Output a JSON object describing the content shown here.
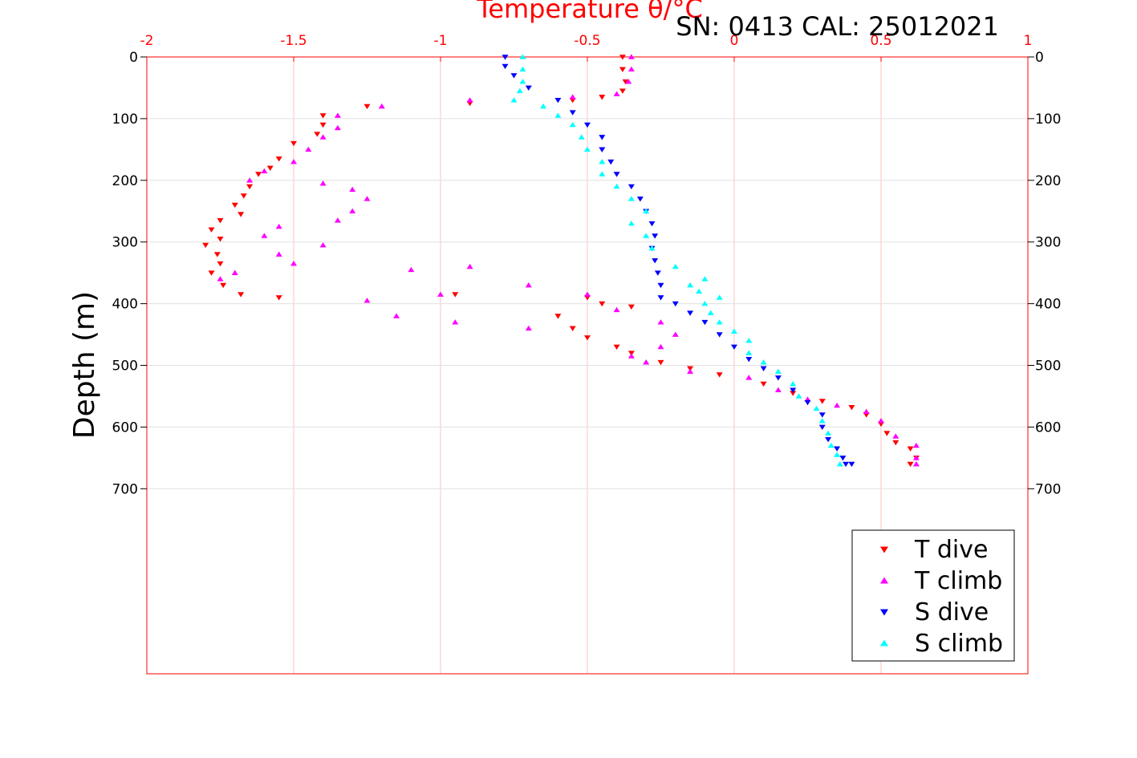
{
  "chart_data": {
    "type": "scatter",
    "title": "Temperature θ/°C",
    "annotation": "SN: 0413  CAL: 25012021",
    "xlabel": "Temperature θ/°C",
    "ylabel": "Depth (m)",
    "xlim": [
      -2,
      1
    ],
    "ylim": [
      0,
      1000
    ],
    "y_reversed": true,
    "x_ticks": [
      "-2",
      "-1.5",
      "-1",
      "-0.5",
      "0",
      "0.5",
      "1"
    ],
    "y_ticks": [
      "0",
      "100",
      "200",
      "300",
      "400",
      "500",
      "600",
      "700"
    ],
    "grid": true,
    "legend_position": "bottom-right",
    "colors": {
      "axis": "#ff0000",
      "grid": "#ffc0c0",
      "hgrid": "#e0e0e0"
    },
    "series": [
      {
        "name": "T dive",
        "marker": "triangle-down",
        "color": "#ff0000",
        "points": [
          [
            -0.38,
            0
          ],
          [
            -0.38,
            20
          ],
          [
            -0.37,
            40
          ],
          [
            -0.38,
            55
          ],
          [
            -0.45,
            65
          ],
          [
            -0.55,
            70
          ],
          [
            -0.9,
            75
          ],
          [
            -1.25,
            80
          ],
          [
            -1.4,
            95
          ],
          [
            -1.4,
            110
          ],
          [
            -1.42,
            125
          ],
          [
            -1.5,
            140
          ],
          [
            -1.55,
            165
          ],
          [
            -1.58,
            180
          ],
          [
            -1.62,
            190
          ],
          [
            -1.65,
            210
          ],
          [
            -1.67,
            225
          ],
          [
            -1.7,
            240
          ],
          [
            -1.68,
            255
          ],
          [
            -1.75,
            265
          ],
          [
            -1.78,
            280
          ],
          [
            -1.75,
            295
          ],
          [
            -1.8,
            305
          ],
          [
            -1.76,
            320
          ],
          [
            -1.75,
            335
          ],
          [
            -1.78,
            350
          ],
          [
            -1.74,
            370
          ],
          [
            -1.68,
            385
          ],
          [
            -1.55,
            390
          ],
          [
            -0.95,
            385
          ],
          [
            -0.5,
            390
          ],
          [
            -0.45,
            400
          ],
          [
            -0.35,
            405
          ],
          [
            -0.6,
            420
          ],
          [
            -0.55,
            440
          ],
          [
            -0.5,
            455
          ],
          [
            -0.4,
            470
          ],
          [
            -0.35,
            480
          ],
          [
            -0.25,
            495
          ],
          [
            -0.15,
            505
          ],
          [
            -0.05,
            515
          ],
          [
            0.1,
            530
          ],
          [
            0.2,
            545
          ],
          [
            0.3,
            558
          ],
          [
            0.4,
            568
          ],
          [
            0.45,
            580
          ],
          [
            0.5,
            595
          ],
          [
            0.52,
            610
          ],
          [
            0.55,
            625
          ],
          [
            0.6,
            635
          ],
          [
            0.62,
            650
          ],
          [
            0.6,
            660
          ]
        ]
      },
      {
        "name": "T climb",
        "marker": "triangle-up",
        "color": "#ff00ff",
        "points": [
          [
            -0.35,
            0
          ],
          [
            -0.35,
            20
          ],
          [
            -0.36,
            40
          ],
          [
            -0.4,
            60
          ],
          [
            -0.55,
            65
          ],
          [
            -0.9,
            70
          ],
          [
            -1.2,
            80
          ],
          [
            -1.35,
            95
          ],
          [
            -1.35,
            115
          ],
          [
            -1.4,
            130
          ],
          [
            -1.45,
            150
          ],
          [
            -1.5,
            170
          ],
          [
            -1.6,
            185
          ],
          [
            -1.65,
            200
          ],
          [
            -1.4,
            205
          ],
          [
            -1.3,
            215
          ],
          [
            -1.25,
            230
          ],
          [
            -1.3,
            250
          ],
          [
            -1.35,
            265
          ],
          [
            -1.55,
            275
          ],
          [
            -1.6,
            290
          ],
          [
            -1.4,
            305
          ],
          [
            -1.55,
            320
          ],
          [
            -1.5,
            335
          ],
          [
            -1.7,
            350
          ],
          [
            -1.75,
            360
          ],
          [
            -1.1,
            345
          ],
          [
            -0.9,
            340
          ],
          [
            -0.7,
            370
          ],
          [
            -1.0,
            385
          ],
          [
            -1.25,
            395
          ],
          [
            -1.15,
            420
          ],
          [
            -0.95,
            430
          ],
          [
            -0.7,
            440
          ],
          [
            -0.5,
            385
          ],
          [
            -0.4,
            410
          ],
          [
            -0.25,
            430
          ],
          [
            -0.2,
            450
          ],
          [
            -0.25,
            470
          ],
          [
            -0.35,
            485
          ],
          [
            -0.3,
            495
          ],
          [
            -0.15,
            510
          ],
          [
            0.05,
            520
          ],
          [
            0.15,
            540
          ],
          [
            0.25,
            555
          ],
          [
            0.35,
            565
          ],
          [
            0.45,
            575
          ],
          [
            0.5,
            590
          ],
          [
            0.55,
            615
          ],
          [
            0.62,
            630
          ],
          [
            0.62,
            650
          ],
          [
            0.62,
            660
          ]
        ]
      },
      {
        "name": "S dive",
        "marker": "triangle-down",
        "color": "#0000ff",
        "points": [
          [
            -0.78,
            0
          ],
          [
            -0.78,
            15
          ],
          [
            -0.75,
            30
          ],
          [
            -0.7,
            50
          ],
          [
            -0.6,
            70
          ],
          [
            -0.55,
            90
          ],
          [
            -0.5,
            110
          ],
          [
            -0.45,
            130
          ],
          [
            -0.45,
            150
          ],
          [
            -0.42,
            170
          ],
          [
            -0.4,
            190
          ],
          [
            -0.35,
            210
          ],
          [
            -0.32,
            230
          ],
          [
            -0.3,
            250
          ],
          [
            -0.28,
            270
          ],
          [
            -0.27,
            290
          ],
          [
            -0.28,
            310
          ],
          [
            -0.27,
            330
          ],
          [
            -0.26,
            350
          ],
          [
            -0.25,
            370
          ],
          [
            -0.25,
            390
          ],
          [
            -0.2,
            400
          ],
          [
            -0.15,
            415
          ],
          [
            -0.1,
            430
          ],
          [
            -0.05,
            450
          ],
          [
            0.0,
            470
          ],
          [
            0.05,
            490
          ],
          [
            0.1,
            505
          ],
          [
            0.15,
            520
          ],
          [
            0.2,
            540
          ],
          [
            0.25,
            560
          ],
          [
            0.3,
            580
          ],
          [
            0.3,
            600
          ],
          [
            0.32,
            620
          ],
          [
            0.35,
            635
          ],
          [
            0.37,
            650
          ],
          [
            0.38,
            660
          ],
          [
            0.4,
            660
          ]
        ]
      },
      {
        "name": "S climb",
        "marker": "triangle-up",
        "color": "#00ffff",
        "points": [
          [
            -0.72,
            0
          ],
          [
            -0.72,
            20
          ],
          [
            -0.72,
            40
          ],
          [
            -0.73,
            55
          ],
          [
            -0.75,
            70
          ],
          [
            -0.65,
            80
          ],
          [
            -0.6,
            95
          ],
          [
            -0.55,
            110
          ],
          [
            -0.52,
            130
          ],
          [
            -0.5,
            150
          ],
          [
            -0.45,
            170
          ],
          [
            -0.45,
            190
          ],
          [
            -0.4,
            210
          ],
          [
            -0.35,
            230
          ],
          [
            -0.3,
            250
          ],
          [
            -0.35,
            270
          ],
          [
            -0.3,
            290
          ],
          [
            -0.28,
            310
          ],
          [
            -0.2,
            340
          ],
          [
            -0.1,
            360
          ],
          [
            -0.15,
            370
          ],
          [
            -0.12,
            380
          ],
          [
            -0.05,
            390
          ],
          [
            -0.1,
            400
          ],
          [
            -0.08,
            415
          ],
          [
            -0.05,
            430
          ],
          [
            0.0,
            445
          ],
          [
            0.05,
            460
          ],
          [
            0.05,
            480
          ],
          [
            0.1,
            495
          ],
          [
            0.15,
            510
          ],
          [
            0.2,
            530
          ],
          [
            0.22,
            550
          ],
          [
            0.28,
            570
          ],
          [
            0.3,
            590
          ],
          [
            0.32,
            610
          ],
          [
            0.33,
            630
          ],
          [
            0.35,
            645
          ],
          [
            0.36,
            660
          ]
        ]
      }
    ]
  }
}
